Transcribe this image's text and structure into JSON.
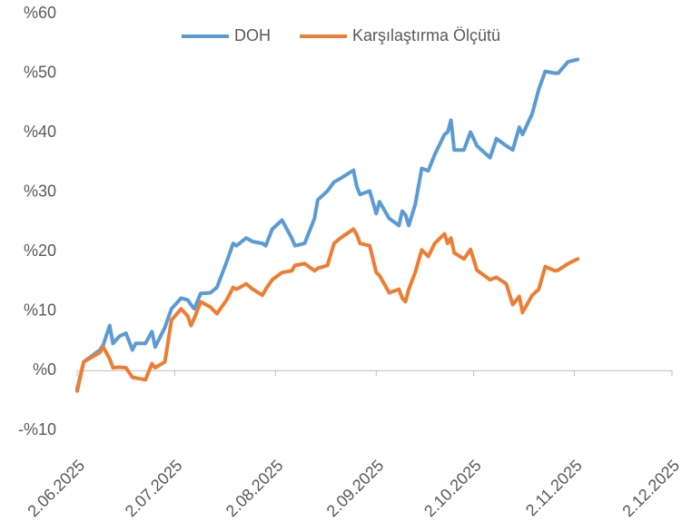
{
  "chart_data": {
    "type": "line",
    "x": [
      "2025-06-02",
      "2025-06-04",
      "2025-06-09",
      "2025-06-10",
      "2025-06-12",
      "2025-06-13",
      "2025-06-15",
      "2025-06-17",
      "2025-06-19",
      "2025-06-20",
      "2025-06-23",
      "2025-06-25",
      "2025-06-26",
      "2025-06-29",
      "2025-07-01",
      "2025-07-04",
      "2025-07-06",
      "2025-07-07",
      "2025-07-08",
      "2025-07-10",
      "2025-07-13",
      "2025-07-15",
      "2025-07-18",
      "2025-07-20",
      "2025-07-21",
      "2025-07-24",
      "2025-07-26",
      "2025-07-29",
      "2025-07-30",
      "2025-08-01",
      "2025-08-04",
      "2025-08-07",
      "2025-08-08",
      "2025-08-11",
      "2025-08-14",
      "2025-08-15",
      "2025-08-18",
      "2025-08-20",
      "2025-08-22",
      "2025-08-26",
      "2025-08-27",
      "2025-08-28",
      "2025-08-31",
      "2025-09-02",
      "2025-09-03",
      "2025-09-06",
      "2025-09-09",
      "2025-09-10",
      "2025-09-11",
      "2025-09-12",
      "2025-09-14",
      "2025-09-16",
      "2025-09-18",
      "2025-09-20",
      "2025-09-23",
      "2025-09-24",
      "2025-09-25",
      "2025-09-26",
      "2025-09-29",
      "2025-10-01",
      "2025-10-03",
      "2025-10-06",
      "2025-10-07",
      "2025-10-09",
      "2025-10-12",
      "2025-10-14",
      "2025-10-16",
      "2025-10-17",
      "2025-10-20",
      "2025-10-22",
      "2025-10-24",
      "2025-10-27",
      "2025-10-28",
      "2025-10-31",
      "2025-11-03"
    ],
    "series": [
      {
        "name": "DOH",
        "color": "#5b9bd5",
        "values": [
          -3.0,
          1.5,
          3.5,
          4.3,
          7.6,
          4.6,
          5.8,
          6.3,
          3.5,
          4.6,
          4.6,
          6.6,
          4.0,
          7.3,
          10.4,
          12.2,
          11.9,
          11.1,
          10.4,
          13.0,
          13.1,
          14.0,
          18.3,
          21.4,
          21.0,
          22.3,
          21.7,
          21.4,
          21.0,
          23.8,
          25.3,
          22.3,
          21.0,
          21.4,
          25.6,
          28.7,
          30.2,
          31.7,
          32.3,
          33.7,
          31.0,
          29.6,
          30.2,
          26.4,
          28.4,
          25.6,
          24.4,
          26.8,
          26.2,
          24.4,
          27.9,
          34.0,
          33.6,
          36.3,
          39.7,
          40.1,
          42.1,
          37.1,
          37.1,
          40.1,
          37.8,
          36.3,
          35.8,
          39.0,
          37.8,
          37.1,
          40.9,
          39.7,
          43.2,
          47.3,
          50.3,
          50.0,
          50.0,
          51.9,
          52.3
        ]
      },
      {
        "name": "Karşılaştırma Ölçütü",
        "color": "#ed7d31",
        "values": [
          -3.4,
          1.5,
          3.1,
          4.0,
          2.0,
          0.5,
          0.6,
          0.5,
          -1.1,
          -1.2,
          -1.5,
          1.2,
          0.5,
          1.5,
          8.5,
          10.4,
          9.2,
          7.6,
          8.8,
          11.6,
          10.7,
          9.6,
          11.9,
          14.0,
          13.7,
          14.6,
          13.7,
          12.7,
          13.7,
          15.3,
          16.5,
          16.8,
          17.7,
          18.0,
          16.8,
          17.2,
          17.7,
          21.4,
          22.3,
          23.8,
          22.9,
          21.4,
          21.0,
          16.5,
          16.0,
          13.1,
          13.7,
          12.2,
          11.6,
          13.7,
          16.5,
          20.3,
          19.2,
          21.4,
          23.0,
          21.4,
          22.3,
          19.8,
          18.8,
          20.4,
          16.9,
          15.7,
          15.3,
          15.7,
          14.6,
          11.1,
          12.5,
          9.8,
          12.7,
          13.7,
          17.5,
          16.8,
          16.9,
          18.0,
          18.8
        ]
      }
    ],
    "xlim": [
      "2025-06-02",
      "2025-12-02"
    ],
    "xticks": [
      {
        "value": "2025-06-02",
        "label": "2.06.2025"
      },
      {
        "value": "2025-07-02",
        "label": "2.07.2025"
      },
      {
        "value": "2025-08-02",
        "label": "2.08.2025"
      },
      {
        "value": "2025-09-02",
        "label": "2.09.2025"
      },
      {
        "value": "2025-10-02",
        "label": "2.10.2025"
      },
      {
        "value": "2025-11-02",
        "label": "2.11.2025"
      },
      {
        "value": "2025-12-02",
        "label": "2.12.2025"
      }
    ],
    "ylim": [
      -10,
      60
    ],
    "yticks": [
      {
        "value": -10,
        "label": "-%10"
      },
      {
        "value": 0,
        "label": "%0"
      },
      {
        "value": 10,
        "label": "%10"
      },
      {
        "value": 20,
        "label": "%20"
      },
      {
        "value": 30,
        "label": "%30"
      },
      {
        "value": 40,
        "label": "%40"
      },
      {
        "value": 50,
        "label": "%50"
      },
      {
        "value": 60,
        "label": "%60"
      }
    ],
    "grid": false,
    "legend": "top"
  }
}
